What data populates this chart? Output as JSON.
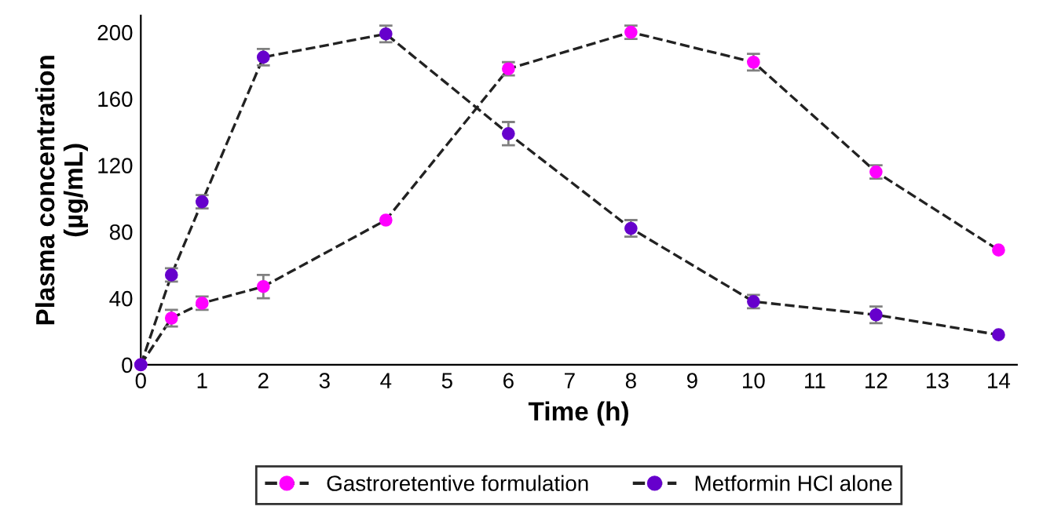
{
  "chart_data": {
    "type": "line",
    "xlabel": "Time (h)",
    "ylabel": "Plasma concentration\n(µg/mL)",
    "x": [
      0,
      0.5,
      1,
      2,
      4,
      6,
      8,
      10,
      12,
      14
    ],
    "series": [
      {
        "name": "Gastroretentive formulation",
        "color": "#ff00ff",
        "values": [
          0,
          28,
          37,
          47,
          87,
          178,
          200,
          182,
          116,
          69
        ],
        "errors": [
          null,
          5,
          4,
          7,
          null,
          4,
          4,
          5,
          4,
          null
        ]
      },
      {
        "name": "Metformin HCl alone",
        "color": "#6600cc",
        "values": [
          0,
          54,
          98,
          185,
          199,
          139,
          82,
          38,
          30,
          18
        ],
        "errors": [
          null,
          4,
          4,
          5,
          5,
          7,
          5,
          4,
          5,
          null
        ]
      }
    ],
    "xlim": [
      0,
      14.3
    ],
    "xticks": [
      0,
      1,
      2,
      3,
      4,
      5,
      6,
      7,
      8,
      9,
      10,
      11,
      12,
      13,
      14
    ],
    "ylim": [
      0,
      210
    ],
    "yticks": [
      0,
      40,
      80,
      120,
      160,
      200
    ],
    "grid": false,
    "legend": "bottom",
    "marker": "circle",
    "line_style": "dashed"
  }
}
